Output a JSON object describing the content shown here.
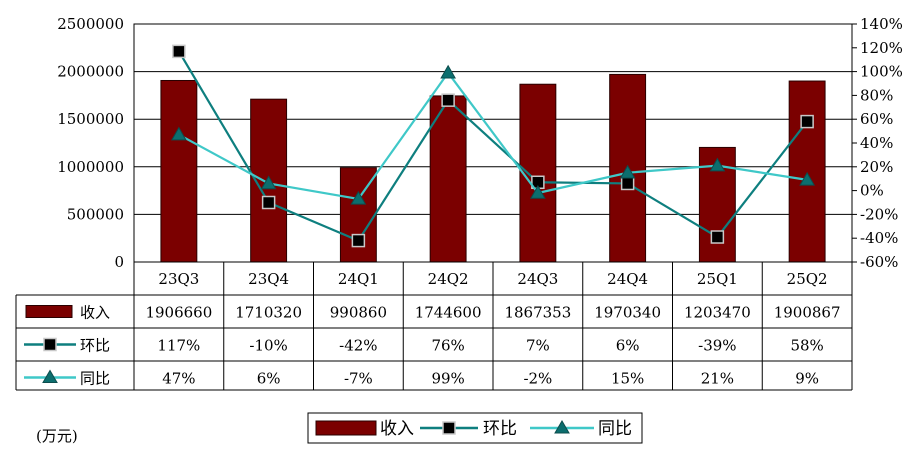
{
  "chart_data": {
    "type": "bar",
    "categories": [
      "23Q3",
      "23Q4",
      "24Q1",
      "24Q2",
      "24Q3",
      "24Q4",
      "25Q1",
      "25Q2"
    ],
    "series": [
      {
        "name": "收入",
        "kind": "bar",
        "axis": "left",
        "values": [
          1906660,
          1710320,
          990860,
          1744600,
          1867353,
          1970340,
          1203470,
          1900867
        ],
        "labels": [
          "1906660",
          "1710320",
          "990860",
          "1744600",
          "1867353",
          "1970340",
          "1203470",
          "1900867"
        ],
        "color": "#7b0000"
      },
      {
        "name": "环比",
        "kind": "line",
        "marker": "square",
        "axis": "right",
        "values": [
          117,
          -10,
          -42,
          76,
          7,
          6,
          -39,
          58
        ],
        "labels": [
          "117%",
          "-10%",
          "-42%",
          "76%",
          "7%",
          "6%",
          "-39%",
          "58%"
        ],
        "color": "#0e7f7f"
      },
      {
        "name": "同比",
        "kind": "line",
        "marker": "triangle",
        "axis": "right",
        "values": [
          47,
          6,
          -7,
          99,
          -2,
          15,
          21,
          9
        ],
        "labels": [
          "47%",
          "6%",
          "-7%",
          "99%",
          "-2%",
          "15%",
          "21%",
          "9%"
        ],
        "color": "#3fc8c8"
      }
    ],
    "ylim_left": [
      0,
      2500000
    ],
    "yticks_left": [
      "0",
      "500000",
      "1000000",
      "1500000",
      "2000000",
      "2500000"
    ],
    "ylim_right": [
      -60,
      140
    ],
    "yticks_right": [
      "-60%",
      "-40%",
      "-20%",
      "0%",
      "20%",
      "40%",
      "60%",
      "80%",
      "100%",
      "120%",
      "140%"
    ],
    "unit_label": "(万元)",
    "legend": [
      "收入",
      "环比",
      "同比"
    ],
    "legend_position": "bottom-center",
    "grid": true
  }
}
